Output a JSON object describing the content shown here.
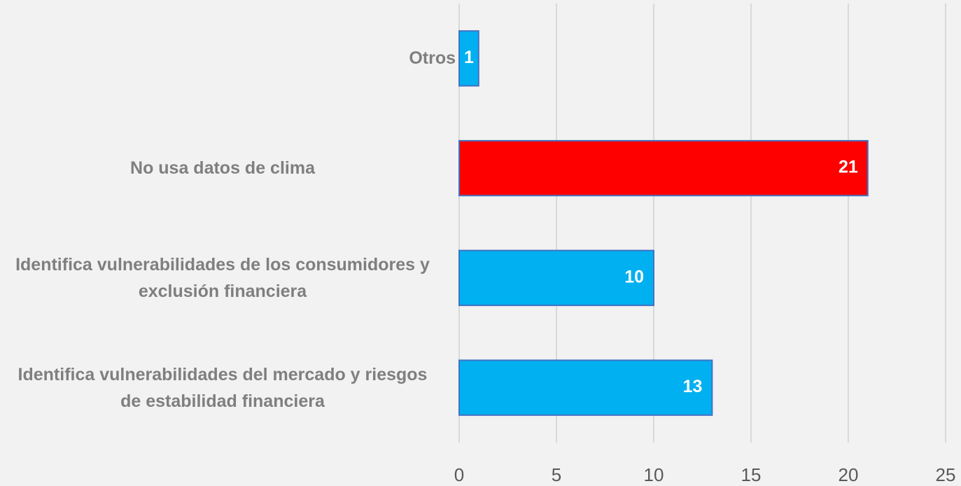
{
  "chart_data": {
    "type": "barh",
    "categories": [
      "Otros",
      "No usa datos de clima",
      "Identifica vulnerabilidades de los consumidores y exclusión financiera",
      "Identifica vulnerabilidades del mercado y riesgos de estabilidad financiera"
    ],
    "values": [
      1,
      21,
      10,
      13
    ],
    "colors": [
      "#00b0f0",
      "#ff0000",
      "#00b0f0",
      "#00b0f0"
    ],
    "xlim": [
      0,
      25
    ],
    "xticks": [
      0,
      5,
      10,
      15,
      20,
      25
    ],
    "grid": true
  }
}
